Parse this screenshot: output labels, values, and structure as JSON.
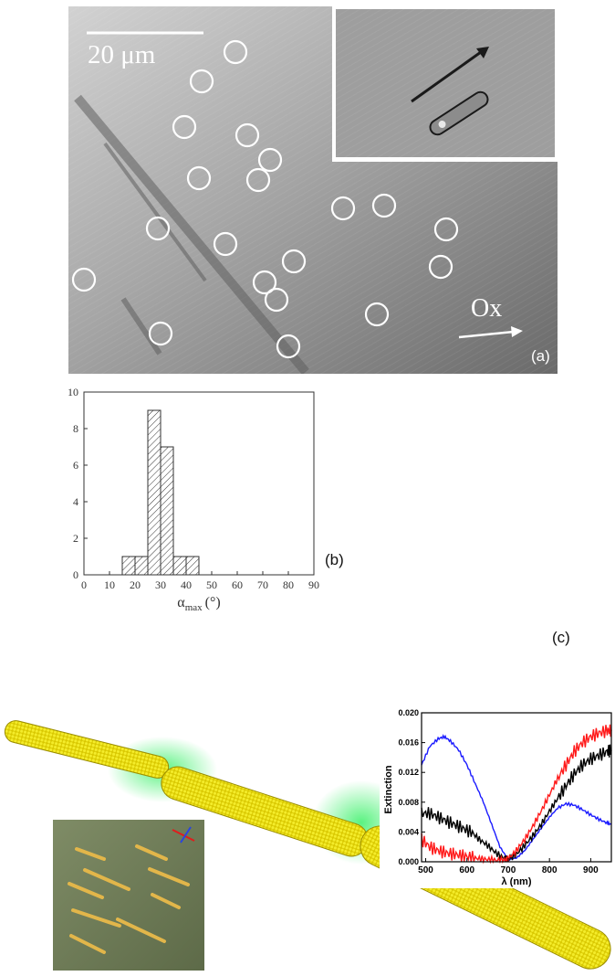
{
  "panel_a": {
    "label": "(a)",
    "scale_bar_text": "20 μm",
    "axis_arrow_text": "Ox"
  },
  "panel_b": {
    "label": "(b)",
    "chart_data": {
      "type": "bar",
      "style": "histogram with hatched bars",
      "xlabel": "α_max (°)",
      "xlabel_main": "α",
      "xlabel_sub": "max",
      "xlabel_unit": "(°)",
      "ylabel": "",
      "xlim": [
        0,
        90
      ],
      "ylim": [
        0,
        10
      ],
      "x_ticks": [
        0,
        10,
        20,
        30,
        40,
        50,
        60,
        70,
        80,
        90
      ],
      "y_ticks": [
        0,
        2,
        4,
        6,
        8,
        10
      ],
      "bins": [
        {
          "from": 15,
          "to": 20,
          "count": 1
        },
        {
          "from": 20,
          "to": 25,
          "count": 1
        },
        {
          "from": 25,
          "to": 30,
          "count": 9
        },
        {
          "from": 30,
          "to": 35,
          "count": 7
        },
        {
          "from": 35,
          "to": 40,
          "count": 1
        },
        {
          "from": 40,
          "to": 45,
          "count": 1
        }
      ],
      "grid": false
    }
  },
  "panel_c": {
    "label": "(c)",
    "inset_chart_data": {
      "type": "line",
      "xlabel": "λ (nm)",
      "ylabel": "Extinction",
      "xlim": [
        490,
        950
      ],
      "ylim": [
        0,
        0.02
      ],
      "x_ticks": [
        500,
        600,
        700,
        800,
        900
      ],
      "y_ticks": [
        "0.000",
        "0.004",
        "0.008",
        "0.012",
        "0.016",
        "0.020"
      ],
      "series": [
        {
          "color": "#1a1aff",
          "x": [
            490,
            510,
            530,
            545,
            560,
            580,
            600,
            620,
            640,
            660,
            680,
            700,
            720,
            740,
            760,
            780,
            800,
            820,
            840,
            860,
            880,
            900,
            920,
            940,
            950
          ],
          "y": [
            0.013,
            0.0155,
            0.0165,
            0.0168,
            0.0162,
            0.015,
            0.013,
            0.0105,
            0.008,
            0.005,
            0.002,
            0.0003,
            0.0005,
            0.0015,
            0.003,
            0.0045,
            0.006,
            0.0072,
            0.0078,
            0.0076,
            0.007,
            0.0063,
            0.0057,
            0.0052,
            0.005
          ]
        },
        {
          "color": "#000000",
          "x": [
            490,
            510,
            530,
            550,
            570,
            590,
            610,
            630,
            650,
            670,
            690,
            700,
            720,
            740,
            760,
            780,
            800,
            820,
            840,
            860,
            880,
            900,
            920,
            940,
            950
          ],
          "y": [
            0.0065,
            0.0065,
            0.006,
            0.0055,
            0.005,
            0.0045,
            0.004,
            0.003,
            0.0022,
            0.0012,
            0.0005,
            0.0003,
            0.001,
            0.0022,
            0.0035,
            0.005,
            0.0068,
            0.0085,
            0.0102,
            0.0118,
            0.013,
            0.0138,
            0.0143,
            0.0148,
            0.015
          ]
        },
        {
          "color": "#ff1a1a",
          "x": [
            490,
            510,
            530,
            550,
            570,
            590,
            610,
            630,
            650,
            670,
            690,
            700,
            720,
            740,
            760,
            780,
            800,
            820,
            840,
            860,
            880,
            900,
            920,
            940,
            950
          ],
          "y": [
            0.003,
            0.002,
            0.0015,
            0.0012,
            0.001,
            0.0008,
            0.0006,
            0.0004,
            0.0003,
            0.0002,
            0.0002,
            0.0004,
            0.0015,
            0.003,
            0.0048,
            0.0068,
            0.009,
            0.0112,
            0.013,
            0.0148,
            0.016,
            0.0168,
            0.0173,
            0.0176,
            0.0177
          ]
        }
      ]
    }
  }
}
